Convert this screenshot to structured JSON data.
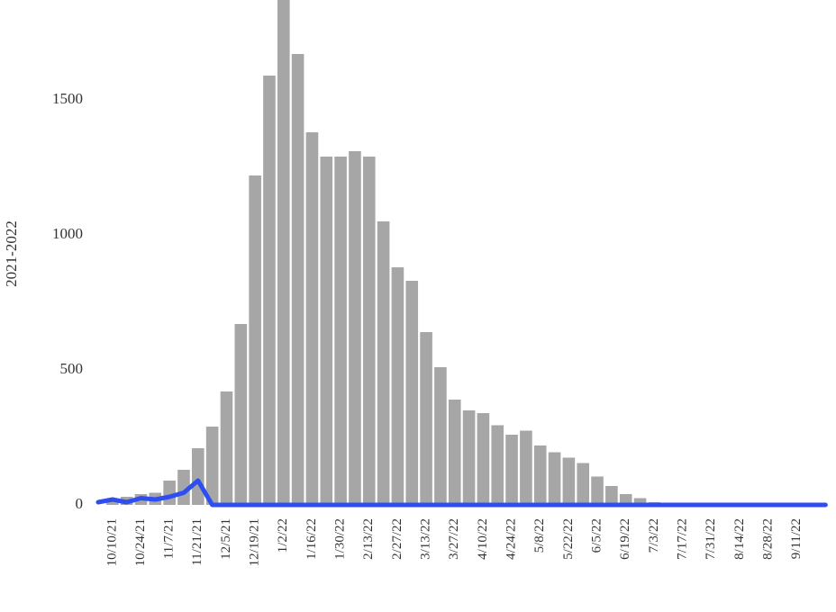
{
  "chart_data": {
    "type": "bar",
    "y_label": "2021-2022",
    "categories": [
      null,
      "10/10/21",
      null,
      "10/24/21",
      null,
      "11/7/21",
      null,
      "11/21/21",
      null,
      "12/5/21",
      null,
      "12/19/21",
      null,
      "1/2/22",
      null,
      "1/16/22",
      null,
      "1/30/22",
      null,
      "2/13/22",
      null,
      "2/27/22",
      null,
      "3/13/22",
      null,
      "3/27/22",
      null,
      "4/10/22",
      null,
      "4/24/22",
      null,
      "5/8/22",
      null,
      "5/22/22",
      null,
      "6/5/22",
      null,
      "6/19/22",
      null,
      "7/3/22",
      null,
      "7/17/22",
      null,
      "7/31/22",
      null,
      "8/14/22",
      null,
      "8/28/22",
      null,
      "9/11/22",
      null,
      null
    ],
    "series": [
      {
        "type": "bar",
        "color": "#a6a6a6",
        "values": [
          0,
          20,
          30,
          40,
          45,
          90,
          130,
          210,
          290,
          420,
          670,
          1220,
          1590,
          1870,
          1670,
          1380,
          1290,
          1290,
          1310,
          1290,
          1050,
          880,
          830,
          640,
          510,
          390,
          350,
          340,
          295,
          260,
          275,
          220,
          195,
          175,
          155,
          105,
          70,
          40,
          25,
          10,
          0,
          0,
          0,
          0,
          0,
          0,
          0,
          0,
          0,
          0,
          0,
          0
        ]
      },
      {
        "type": "line",
        "color": "#2f4ef0",
        "values": [
          10,
          20,
          10,
          25,
          20,
          30,
          45,
          90,
          0,
          0,
          0,
          0,
          0,
          0,
          0,
          0,
          0,
          0,
          0,
          0,
          0,
          0,
          0,
          0,
          0,
          0,
          0,
          0,
          0,
          0,
          0,
          0,
          0,
          0,
          0,
          0,
          0,
          0,
          0,
          0,
          0,
          0,
          0,
          0,
          0,
          0,
          0,
          0,
          0,
          0,
          0,
          0
        ]
      }
    ],
    "ylim": [
      0,
      1900
    ],
    "yticks": [
      0,
      500,
      1000,
      1500
    ]
  }
}
